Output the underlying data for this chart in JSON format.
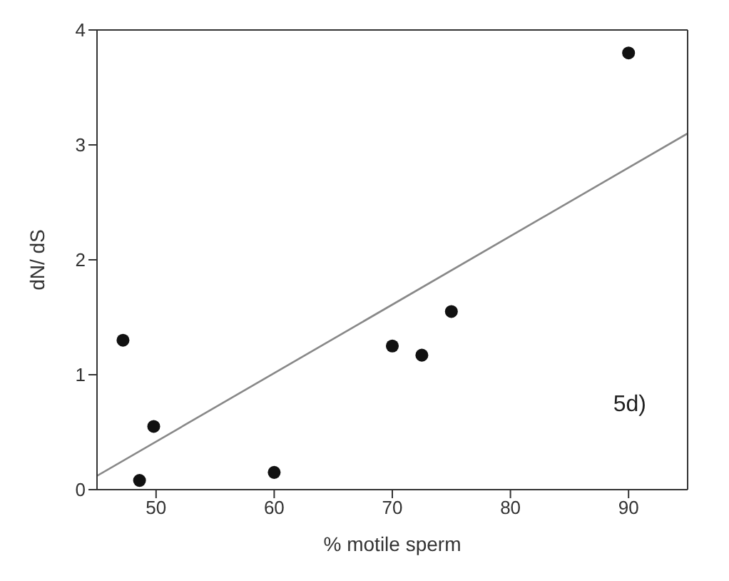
{
  "chart_data": {
    "type": "scatter",
    "xlabel": "% motile sperm",
    "ylabel": "dN/ dS",
    "xlim": [
      45,
      95
    ],
    "xticks": [
      50,
      60,
      70,
      80,
      90
    ],
    "ylim": [
      0,
      4
    ],
    "yticks": [
      0,
      1,
      2,
      3,
      4
    ],
    "series": [
      {
        "color": "#111111",
        "x": [
          47.2,
          48.6,
          49.8,
          60,
          70,
          72.5,
          75,
          90
        ],
        "values": [
          1.3,
          0.08,
          0.55,
          0.15,
          1.25,
          1.17,
          1.55,
          3.8
        ]
      },
      {
        "type": "line",
        "color": "#888888",
        "x": [
          45,
          95
        ],
        "values": [
          0.12,
          3.1
        ]
      }
    ],
    "annotations": [
      "5d)"
    ]
  }
}
